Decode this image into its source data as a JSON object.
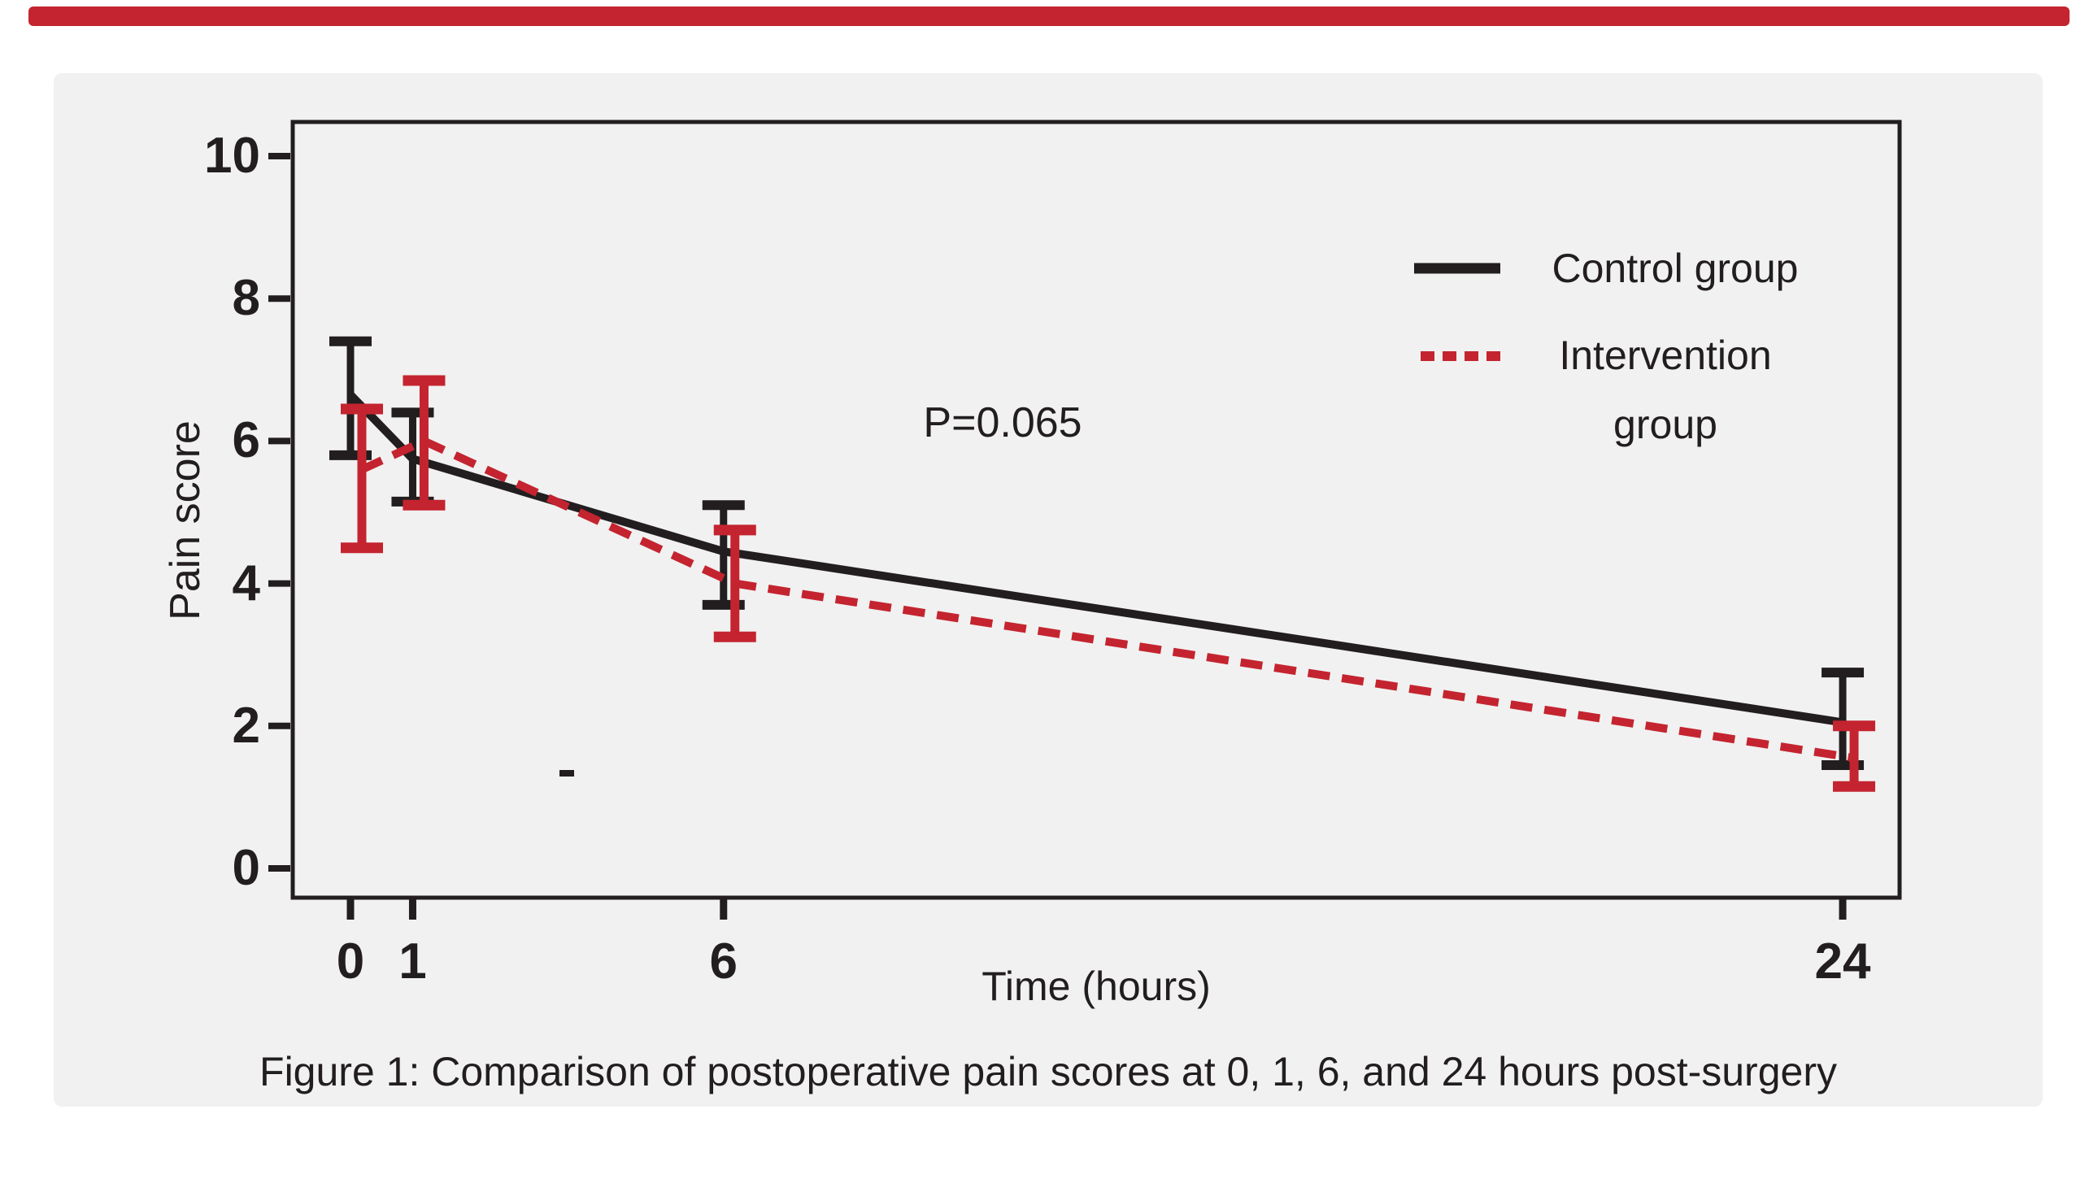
{
  "page": {
    "background": "#ffffff",
    "top_bar_color": "#c4242f",
    "panel_color": "#f1f1f1",
    "text_color": "#221e1f"
  },
  "figure": {
    "caption": "Figure 1: Comparison of postoperative pain scores at 0, 1, 6, and 24 hours post-surgery"
  },
  "chart_data": {
    "type": "line",
    "title": "",
    "xlabel": "Time (hours)",
    "ylabel": "Pain score",
    "x": [
      0,
      1,
      6,
      24
    ],
    "x_tick_labels": [
      "0",
      "1",
      "6",
      "24"
    ],
    "y_ticks": [
      0,
      2,
      4,
      6,
      8,
      10
    ],
    "y_tick_labels": [
      "0",
      "2",
      "4",
      "6",
      "8",
      "10"
    ],
    "xlim": [
      -1,
      25
    ],
    "ylim": [
      -0.5,
      10.5
    ],
    "grid": false,
    "legend_position": "upper-right-inside",
    "annotation": "P=0.065",
    "error_bars": true,
    "series": [
      {
        "name": "Control group",
        "color": "#221e1f",
        "line_style": "solid",
        "values": [
          6.65,
          5.75,
          4.45,
          2.05
        ],
        "ci_low": [
          5.8,
          5.15,
          3.7,
          1.45
        ],
        "ci_high": [
          7.4,
          6.4,
          5.1,
          2.75
        ]
      },
      {
        "name": "Intervention group",
        "name_line1": "Intervention",
        "name_line2": "group",
        "color": "#c4242f",
        "line_style": "dashed",
        "values": [
          5.6,
          6.0,
          4.0,
          1.55
        ],
        "ci_low": [
          4.5,
          5.1,
          3.25,
          1.15
        ],
        "ci_high": [
          6.45,
          6.85,
          4.75,
          2.0
        ]
      }
    ]
  }
}
